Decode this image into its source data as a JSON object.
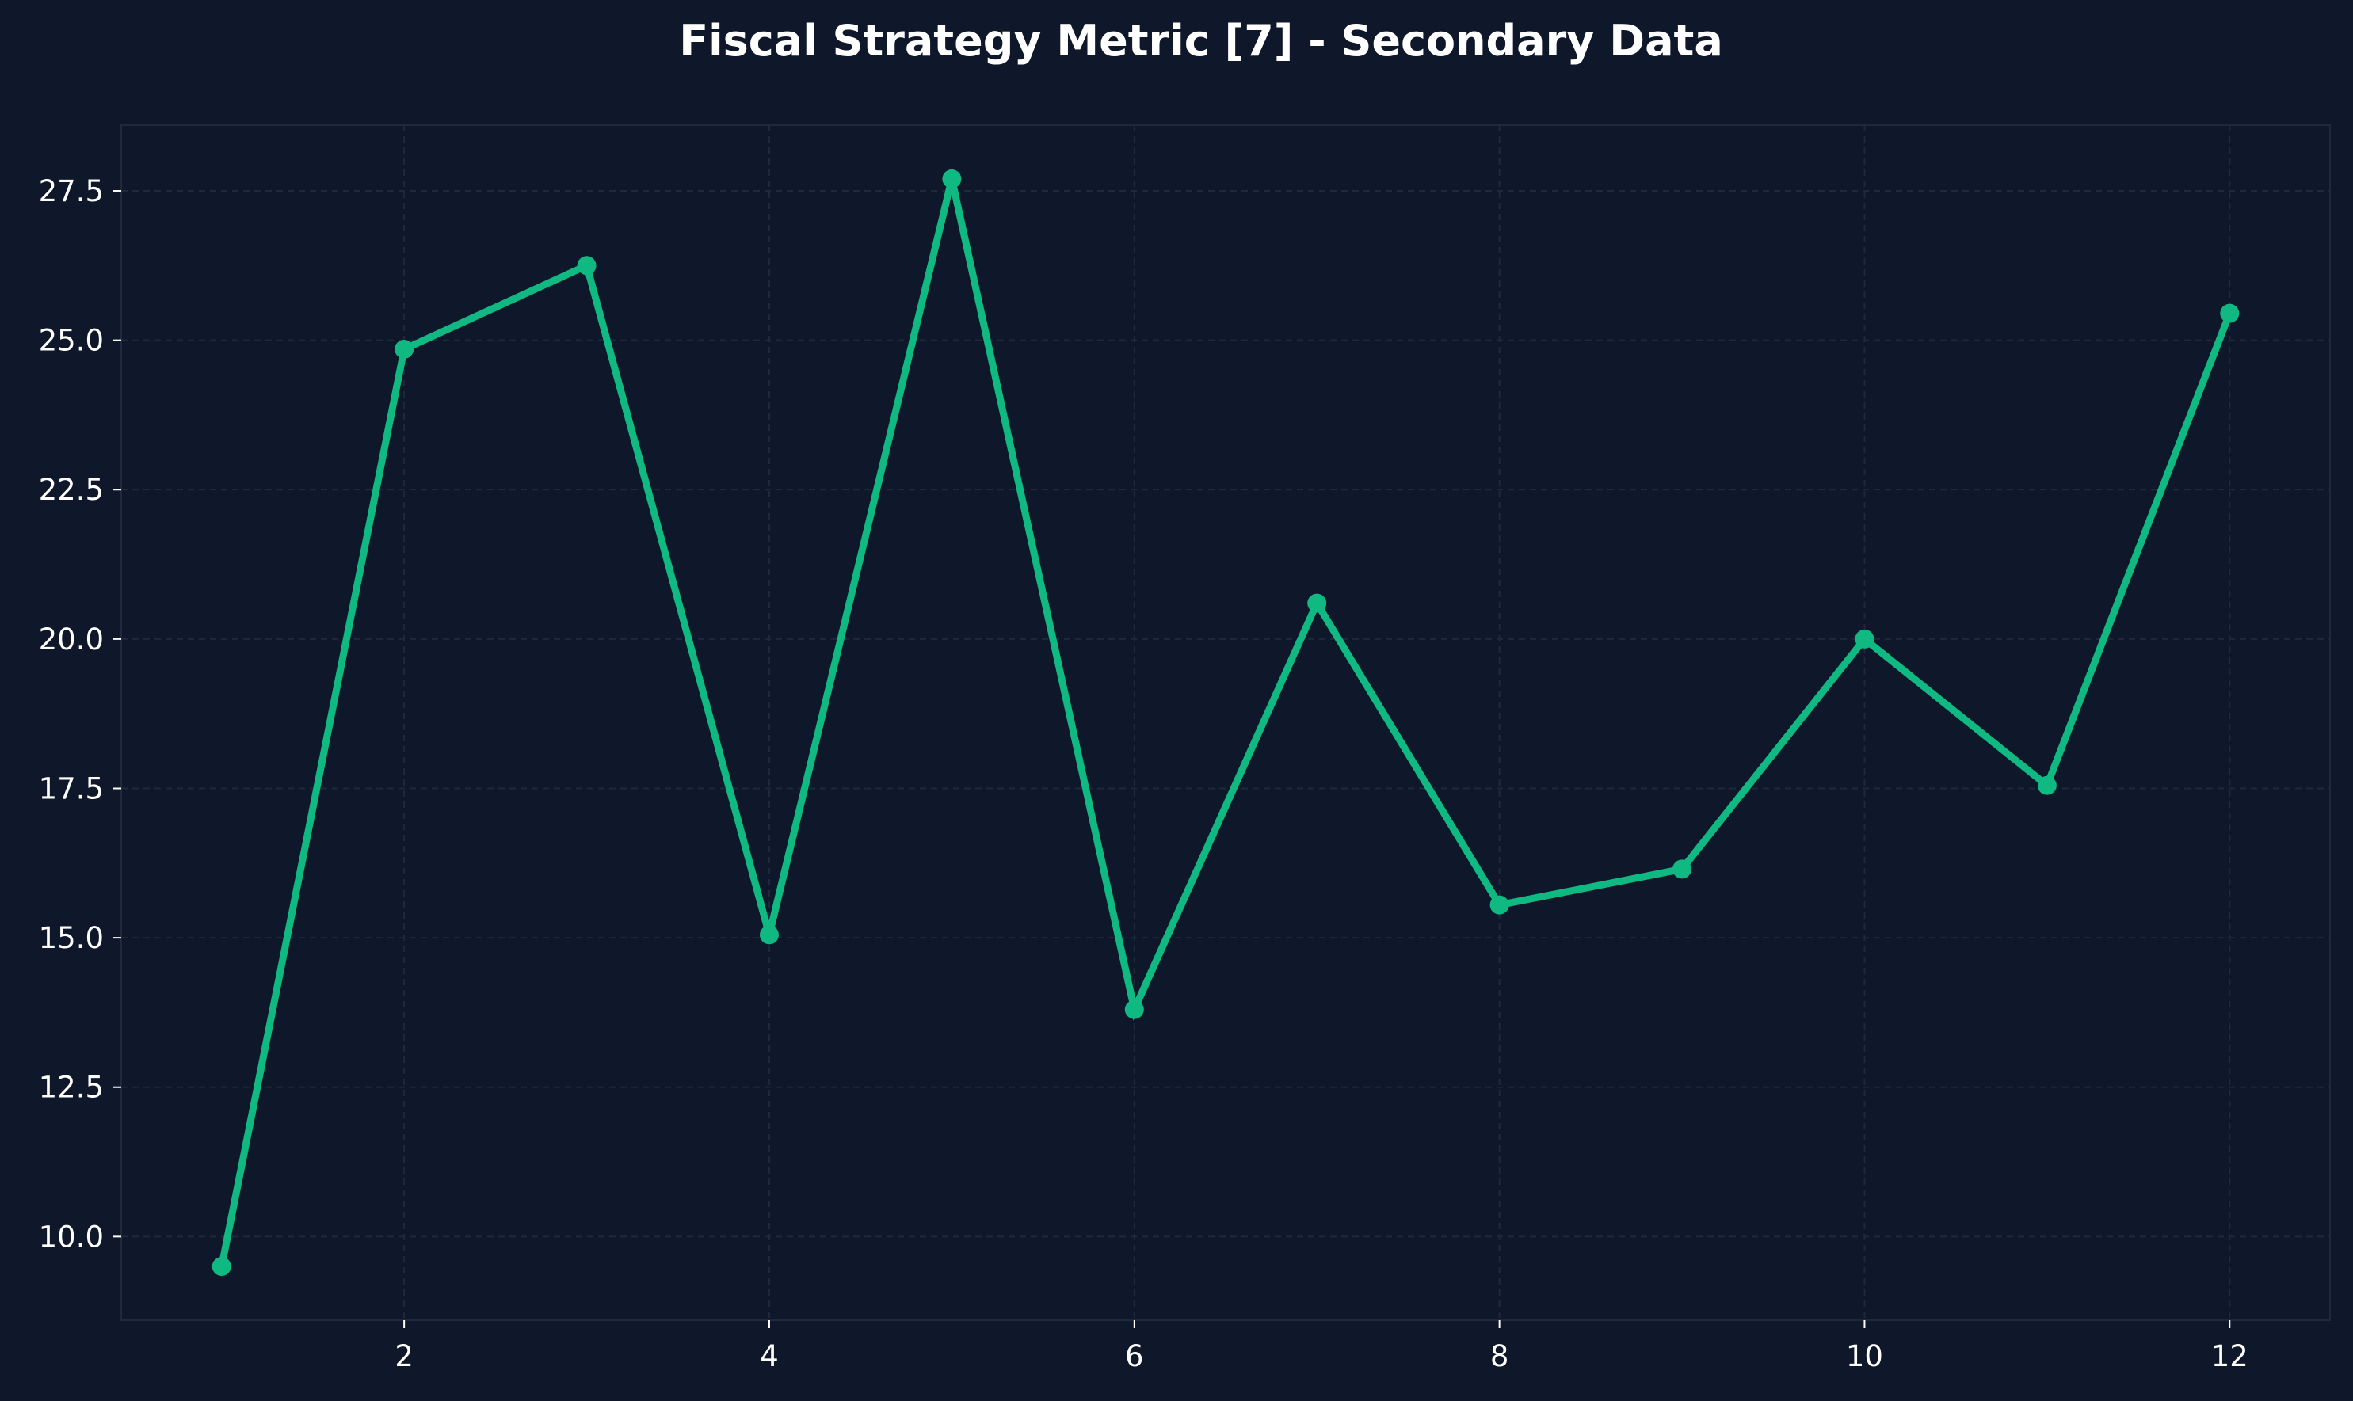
{
  "chart_data": {
    "type": "line",
    "title": "Fiscal Strategy Metric [7] - Secondary Data",
    "xlabel": "",
    "ylabel": "",
    "x": [
      1,
      2,
      3,
      4,
      5,
      6,
      7,
      8,
      9,
      10,
      11,
      12
    ],
    "series": [
      {
        "values": [
          9.5,
          24.85,
          26.25,
          15.05,
          27.7,
          13.8,
          20.6,
          15.55,
          16.15,
          20.0,
          17.55,
          25.45
        ]
      }
    ],
    "xlim": [
      0.45,
      12.55
    ],
    "ylim": [
      8.6,
      28.6
    ],
    "xticks": [
      2,
      4,
      6,
      8,
      10,
      12
    ],
    "yticks": [
      10.0,
      12.5,
      15.0,
      17.5,
      20.0,
      22.5,
      25.0,
      27.5
    ],
    "xtick_labels": [
      "2",
      "4",
      "6",
      "8",
      "10",
      "12"
    ],
    "ytick_labels": [
      "10.0",
      "12.5",
      "15.0",
      "17.5",
      "20.0",
      "22.5",
      "25.0",
      "27.5"
    ],
    "grid": true,
    "markers": true,
    "colors": {
      "background": "#0f172a",
      "line": "#10b981",
      "grid": "#1e293b",
      "spine": "#1e293b",
      "text": "#ffffff"
    }
  }
}
